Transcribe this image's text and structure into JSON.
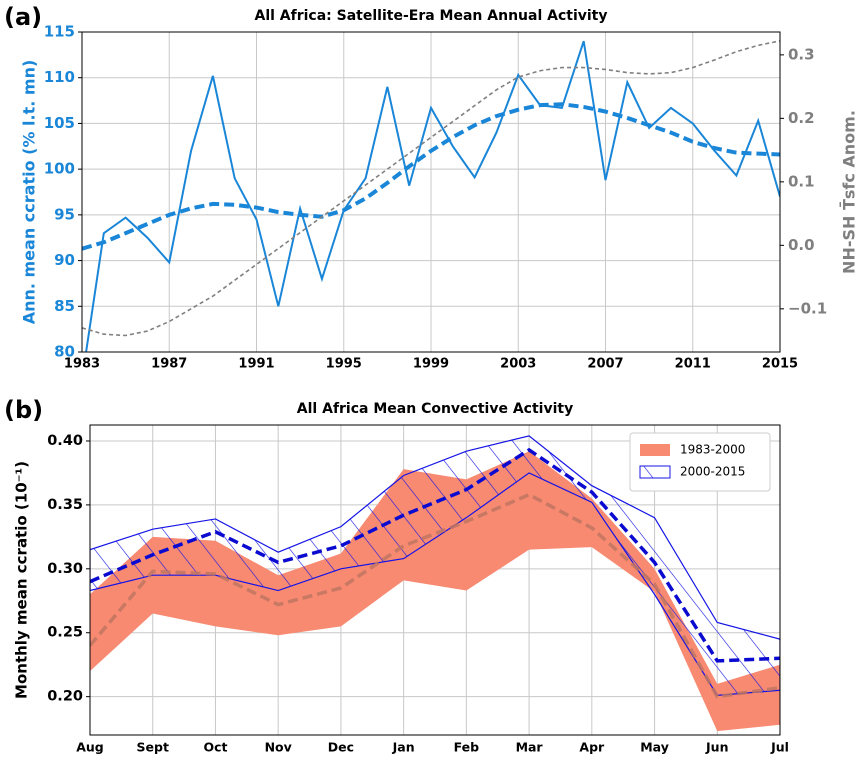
{
  "chart_data": [
    {
      "type": "line",
      "panel_label": "(a)",
      "title": "All Africa: Satellite-Era Mean Annual Activity",
      "y_label": "Ann. mean ccratio (% l.t. mn)",
      "y_label_color": "#1a86d8",
      "y2_label": "NH-SH T̄sfc Anom.",
      "y2_label_color": "#7f7f7f",
      "x": [
        1983,
        1984,
        1985,
        1986,
        1987,
        1988,
        1989,
        1990,
        1991,
        1992,
        1993,
        1994,
        1995,
        1996,
        1997,
        1998,
        1999,
        2000,
        2001,
        2002,
        2003,
        2004,
        2005,
        2006,
        2007,
        2008,
        2009,
        2010,
        2011,
        2012,
        2013,
        2014,
        2015
      ],
      "xlim": [
        1983,
        2015
      ],
      "xticks": [
        1983,
        1987,
        1991,
        1995,
        1999,
        2003,
        2007,
        2011,
        2015
      ],
      "ylim": [
        80,
        115
      ],
      "yticks": [
        80,
        85,
        90,
        95,
        100,
        105,
        110,
        115
      ],
      "y2lim": [
        -0.168,
        0.336
      ],
      "y2ticks": [
        {
          "value": -0.1,
          "label": "−0.1"
        },
        {
          "value": 0,
          "label": "0.0"
        },
        0.1,
        0.2,
        0.3
      ],
      "grid": true,
      "series": [
        {
          "color": "#1a86d8",
          "dashed": false,
          "values": [
            77,
            93,
            94.7,
            92.5,
            89.8,
            102,
            110.2,
            99,
            94.5,
            85,
            95.7,
            88,
            95.5,
            99,
            109,
            98.2,
            106.7,
            102.5,
            99.1,
            104,
            110.3,
            107,
            106.7,
            114,
            98.8,
            109.5,
            104.5,
            106.7,
            105,
            102,
            99.3,
            105.3,
            97
          ]
        },
        {
          "color": "#1a86d8",
          "dashed": true,
          "values": [
            91.3,
            92,
            93,
            94,
            95,
            95.7,
            96.2,
            96.1,
            95.8,
            95.3,
            95,
            94.8,
            95.5,
            96.8,
            98.5,
            100.3,
            102,
            103.5,
            104.8,
            105.8,
            106.5,
            107,
            107.1,
            106.8,
            106.3,
            105.6,
            104.8,
            104,
            103,
            102.3,
            101.8,
            101.7,
            101.6
          ]
        },
        {
          "color": "#808080",
          "dashed": true,
          "axis": "y2",
          "values": [
            -0.13,
            -0.14,
            -0.142,
            -0.135,
            -0.12,
            -0.1,
            -0.08,
            -0.055,
            -0.03,
            -0.005,
            0.02,
            0.045,
            0.07,
            0.095,
            0.12,
            0.145,
            0.17,
            0.195,
            0.22,
            0.245,
            0.265,
            0.275,
            0.28,
            0.28,
            0.277,
            0.272,
            0.27,
            0.272,
            0.28,
            0.292,
            0.305,
            0.315,
            0.322
          ]
        }
      ]
    },
    {
      "type": "range",
      "panel_label": "(b)",
      "title": "All Africa Mean Convective Activity",
      "y_label": "Monthly mean ccratio (10⁻¹)",
      "categories": [
        "Aug",
        "Sept",
        "Oct",
        "Nov",
        "Dec",
        "Jan",
        "Feb",
        "Mar",
        "Apr",
        "May",
        "Jun",
        "Jul"
      ],
      "ylim": [
        0.17,
        0.4125
      ],
      "yticks": [
        {
          "value": 0.2,
          "label": "0.20"
        },
        0.25,
        {
          "value": 0.3,
          "label": "0.30"
        },
        0.35,
        {
          "value": 0.4,
          "label": "0.40"
        }
      ],
      "grid": true,
      "legend": "upper right",
      "series": [
        {
          "name": "1983-2000",
          "color": "#f88a72",
          "mean_color": "#c07460",
          "fill": "solid",
          "lower": [
            0.22,
            0.265,
            0.255,
            0.248,
            0.255,
            0.291,
            0.283,
            0.315,
            0.317,
            0.282,
            0.173,
            0.178
          ],
          "upper": [
            0.28,
            0.325,
            0.322,
            0.295,
            0.312,
            0.378,
            0.37,
            0.392,
            0.355,
            0.3,
            0.21,
            0.225
          ],
          "mean": [
            0.24,
            0.298,
            0.296,
            0.272,
            0.285,
            0.318,
            0.337,
            0.358,
            0.332,
            0.288,
            0.2,
            0.207
          ]
        },
        {
          "name": "2000-2015",
          "color": "#1414e6",
          "mean_color": "#0a0ad0",
          "fill": "hatch",
          "lower": [
            0.283,
            0.295,
            0.295,
            0.283,
            0.3,
            0.308,
            0.34,
            0.375,
            0.352,
            0.28,
            0.201,
            0.205
          ],
          "upper": [
            0.315,
            0.331,
            0.339,
            0.313,
            0.333,
            0.373,
            0.392,
            0.404,
            0.365,
            0.34,
            0.258,
            0.245
          ],
          "mean": [
            0.29,
            0.311,
            0.329,
            0.305,
            0.318,
            0.342,
            0.362,
            0.393,
            0.36,
            0.305,
            0.228,
            0.23
          ]
        }
      ]
    }
  ]
}
